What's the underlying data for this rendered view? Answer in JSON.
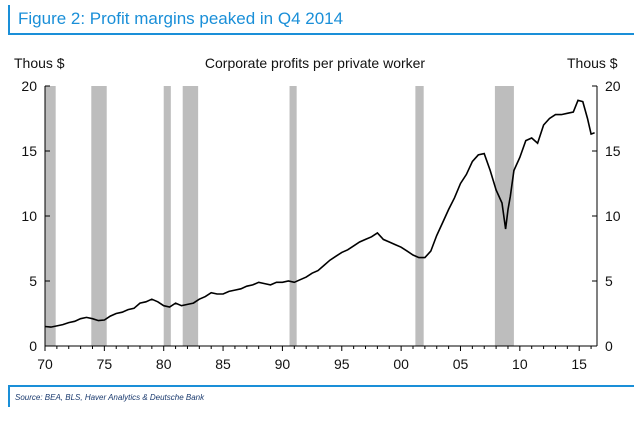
{
  "figure": {
    "title": "Figure 2: Profit margins peaked in Q4 2014",
    "source": "Source: BEA, BLS, Haver Analytics & Deutsche Bank"
  },
  "chart_data": {
    "type": "line",
    "title": "Corporate profits per private worker",
    "ylabel_left": "Thous $",
    "ylabel_right": "Thous $",
    "xlim": [
      1970,
      2016.5
    ],
    "ylim": [
      0,
      20
    ],
    "y_ticks": [
      0,
      5,
      10,
      15,
      20
    ],
    "x_ticks": [
      {
        "value": 1970,
        "label": "70"
      },
      {
        "value": 1975,
        "label": "75"
      },
      {
        "value": 1980,
        "label": "80"
      },
      {
        "value": 1985,
        "label": "85"
      },
      {
        "value": 1990,
        "label": "90"
      },
      {
        "value": 1995,
        "label": "95"
      },
      {
        "value": 2000,
        "label": "00"
      },
      {
        "value": 2005,
        "label": "05"
      },
      {
        "value": 2010,
        "label": "10"
      },
      {
        "value": 2015,
        "label": "15"
      }
    ],
    "recession_shading": [
      [
        1970.0,
        1970.9
      ],
      [
        1973.9,
        1975.2
      ],
      [
        1980.0,
        1980.6
      ],
      [
        1981.6,
        1982.9
      ],
      [
        1990.6,
        1991.2
      ],
      [
        2001.2,
        2001.9
      ],
      [
        2007.9,
        2009.5
      ]
    ],
    "series": [
      {
        "color": "#000000",
        "x": [
          1970.0,
          1970.5,
          1971.0,
          1971.5,
          1972.0,
          1972.5,
          1973.0,
          1973.5,
          1974.0,
          1974.5,
          1975.0,
          1975.5,
          1976.0,
          1976.5,
          1977.0,
          1977.5,
          1978.0,
          1978.5,
          1979.0,
          1979.5,
          1980.0,
          1980.5,
          1981.0,
          1981.5,
          1982.0,
          1982.5,
          1983.0,
          1983.5,
          1984.0,
          1984.5,
          1985.0,
          1985.5,
          1986.0,
          1986.5,
          1987.0,
          1987.5,
          1988.0,
          1988.5,
          1989.0,
          1989.5,
          1990.0,
          1990.5,
          1991.0,
          1991.5,
          1992.0,
          1992.5,
          1993.0,
          1993.5,
          1994.0,
          1994.5,
          1995.0,
          1995.5,
          1996.0,
          1996.5,
          1997.0,
          1997.5,
          1998.0,
          1998.5,
          1999.0,
          1999.5,
          2000.0,
          2000.5,
          2001.0,
          2001.5,
          2002.0,
          2002.5,
          2003.0,
          2003.5,
          2004.0,
          2004.5,
          2005.0,
          2005.5,
          2006.0,
          2006.5,
          2007.0,
          2007.5,
          2008.0,
          2008.5,
          2008.8,
          2009.0,
          2009.2,
          2009.5,
          2010.0,
          2010.5,
          2011.0,
          2011.5,
          2012.0,
          2012.5,
          2013.0,
          2013.5,
          2014.0,
          2014.5,
          2014.9,
          2015.3,
          2015.7,
          2016.0,
          2016.3
        ],
        "y": [
          1.5,
          1.45,
          1.55,
          1.65,
          1.8,
          1.9,
          2.1,
          2.2,
          2.1,
          1.95,
          2.0,
          2.3,
          2.5,
          2.6,
          2.8,
          2.9,
          3.3,
          3.4,
          3.6,
          3.4,
          3.1,
          3.0,
          3.3,
          3.1,
          3.2,
          3.3,
          3.6,
          3.8,
          4.1,
          4.0,
          4.0,
          4.2,
          4.3,
          4.4,
          4.6,
          4.7,
          4.9,
          4.8,
          4.7,
          4.9,
          4.9,
          5.0,
          4.9,
          5.1,
          5.3,
          5.6,
          5.8,
          6.2,
          6.6,
          6.9,
          7.2,
          7.4,
          7.7,
          8.0,
          8.2,
          8.4,
          8.7,
          8.2,
          8.0,
          7.8,
          7.6,
          7.3,
          7.0,
          6.8,
          6.8,
          7.3,
          8.5,
          9.5,
          10.5,
          11.4,
          12.5,
          13.2,
          14.2,
          14.7,
          14.8,
          13.5,
          12.0,
          11.0,
          9.0,
          10.5,
          11.5,
          13.5,
          14.5,
          15.8,
          16.0,
          15.6,
          17.0,
          17.5,
          17.8,
          17.8,
          17.9,
          18.0,
          18.9,
          18.8,
          17.5,
          16.3,
          16.4
        ]
      }
    ]
  }
}
